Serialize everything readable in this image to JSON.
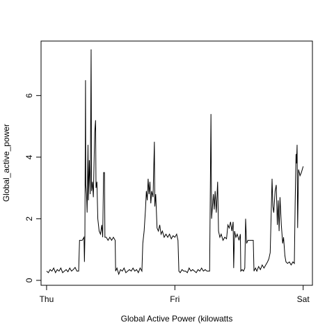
{
  "chart_data": {
    "type": "line",
    "xlabel": "Global Active Power (kilowatts",
    "ylabel": "Global_active_power",
    "x": [
      0,
      20,
      40,
      60,
      80,
      100,
      120,
      140,
      160,
      180,
      200,
      220,
      240,
      260,
      280,
      300,
      320,
      340,
      360,
      370,
      400,
      420,
      425,
      430,
      437,
      440,
      448,
      455,
      465,
      470,
      480,
      490,
      500,
      505,
      515,
      525,
      540,
      550,
      555,
      565,
      575,
      590,
      605,
      620,
      630,
      640,
      650,
      655,
      670,
      690,
      710,
      730,
      750,
      770,
      775,
      790,
      810,
      830,
      850,
      870,
      890,
      910,
      930,
      950,
      970,
      990,
      1010,
      1030,
      1050,
      1070,
      1080,
      1095,
      1110,
      1120,
      1130,
      1140,
      1150,
      1160,
      1170,
      1180,
      1195,
      1210,
      1215,
      1225,
      1240,
      1255,
      1270,
      1285,
      1300,
      1320,
      1340,
      1360,
      1380,
      1400,
      1420,
      1440,
      1460,
      1475,
      1485,
      1500,
      1520,
      1540,
      1560,
      1580,
      1600,
      1620,
      1640,
      1660,
      1680,
      1700,
      1720,
      1740,
      1760,
      1780,
      1800,
      1830,
      1845,
      1852,
      1862,
      1872,
      1882,
      1892,
      1905,
      1920,
      1930,
      1945,
      1960,
      1980,
      2000,
      2020,
      2035,
      2050,
      2065,
      2080,
      2094,
      2100,
      2110,
      2125,
      2140,
      2160,
      2175,
      2180,
      2195,
      2210,
      2225,
      2234,
      2245,
      2260,
      2280,
      2300,
      2320,
      2328,
      2345,
      2360,
      2380,
      2400,
      2420,
      2440,
      2460,
      2480,
      2495,
      2510,
      2531,
      2540,
      2550,
      2565,
      2578,
      2590,
      2600,
      2610,
      2620,
      2635,
      2650,
      2660,
      2675,
      2687,
      2705,
      2725,
      2745,
      2765,
      2781,
      2790,
      2800,
      2805,
      2812,
      2818,
      2828,
      2845,
      2860,
      2870,
      2880
    ],
    "series": [
      {
        "name": "Global_active_power",
        "color": "#000000",
        "values": [
          0.3,
          0.25,
          0.35,
          0.3,
          0.4,
          0.25,
          0.35,
          0.3,
          0.4,
          0.25,
          0.3,
          0.35,
          0.28,
          0.4,
          0.3,
          0.35,
          0.42,
          0.3,
          0.3,
          1.3,
          1.3,
          1.4,
          0.6,
          1.4,
          6.5,
          3.1,
          2.8,
          2.2,
          4.4,
          2.6,
          3.9,
          2.8,
          7.5,
          2.9,
          3.2,
          2.7,
          4.8,
          5.2,
          3.0,
          3.2,
          2.0,
          1.6,
          1.5,
          1.8,
          1.4,
          3.5,
          3.5,
          1.4,
          1.4,
          1.3,
          1.4,
          1.3,
          1.4,
          1.3,
          0.3,
          0.4,
          0.2,
          0.35,
          0.3,
          0.4,
          0.25,
          0.3,
          0.35,
          0.3,
          0.4,
          0.3,
          0.35,
          0.25,
          0.4,
          0.3,
          1.2,
          1.6,
          2.3,
          2.9,
          2.6,
          3.3,
          2.8,
          3.2,
          2.5,
          2.9,
          2.7,
          4.5,
          2.4,
          2.8,
          1.7,
          1.6,
          1.8,
          1.5,
          1.6,
          1.4,
          1.5,
          1.4,
          1.5,
          1.35,
          1.45,
          1.4,
          1.5,
          1.3,
          0.3,
          0.25,
          0.35,
          0.3,
          0.3,
          0.25,
          0.4,
          0.3,
          0.35,
          0.3,
          0.25,
          0.35,
          0.3,
          0.4,
          0.3,
          0.35,
          0.3,
          0.3,
          5.4,
          2.0,
          2.4,
          2.8,
          2.3,
          2.9,
          2.2,
          3.2,
          1.6,
          1.4,
          1.5,
          1.3,
          1.4,
          1.35,
          1.8,
          1.7,
          1.9,
          1.6,
          1.9,
          0.4,
          1.6,
          1.4,
          1.5,
          1.3,
          1.5,
          0.3,
          0.35,
          0.3,
          0.4,
          2.0,
          1.2,
          1.3,
          1.3,
          1.3,
          1.3,
          0.3,
          0.4,
          0.3,
          0.45,
          0.35,
          0.5,
          0.4,
          0.5,
          0.6,
          0.7,
          0.9,
          3.3,
          2.4,
          2.2,
          2.9,
          3.1,
          1.8,
          2.6,
          1.6,
          2.7,
          1.8,
          1.2,
          1.4,
          0.8,
          0.6,
          0.55,
          0.6,
          0.5,
          0.6,
          0.55,
          2.5,
          4.1,
          3.8,
          4.4,
          1.7,
          3.6,
          3.4,
          3.5,
          3.6,
          3.7
        ]
      }
    ],
    "xlim": [
      -62,
      2984
    ],
    "xticks": [
      {
        "value": 0,
        "label": "Thu"
      },
      {
        "value": 1440,
        "label": "Fri"
      },
      {
        "value": 2880,
        "label": "Sat"
      }
    ],
    "ylim": [
      -0.16,
      7.77
    ],
    "yticks": [
      0,
      2,
      4,
      6
    ],
    "grid": false
  }
}
